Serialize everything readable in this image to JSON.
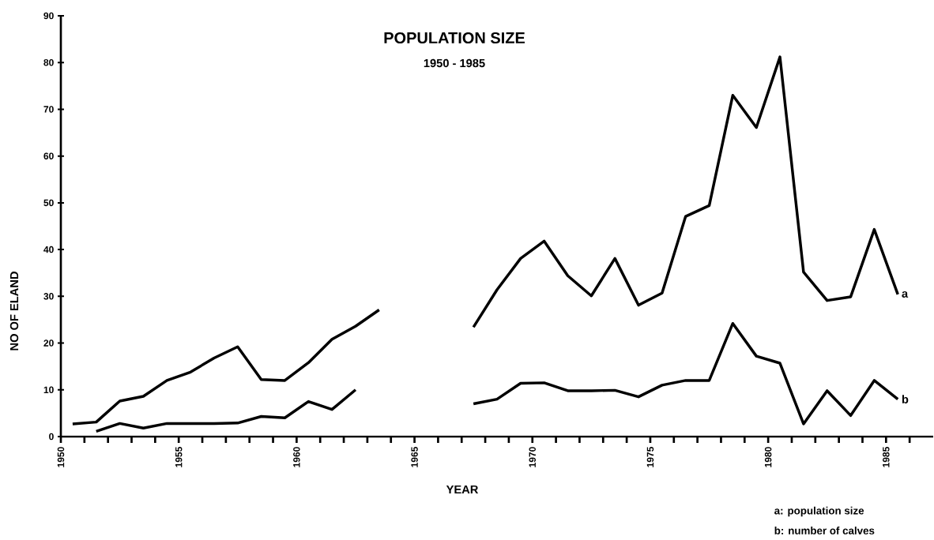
{
  "chart_data": {
    "type": "line",
    "title": "POPULATION SIZE",
    "subtitle": "1950 - 1985",
    "xlabel": "YEAR",
    "ylabel": "NO OF ELAND",
    "annotations": [
      "a: population size",
      "b: number of calves"
    ],
    "x": [
      1950.5,
      1951.5,
      1952.5,
      1953.5,
      1954.5,
      1955.5,
      1956.5,
      1957.5,
      1958.5,
      1959.5,
      1960.5,
      1961.5,
      1962.5,
      1963.5,
      1964.5,
      1965.5,
      1966.5,
      1967.5,
      1968.5,
      1969.5,
      1970.5,
      1971.5,
      1972.5,
      1973.5,
      1974.5,
      1975.5,
      1976.5,
      1977.5,
      1978.5,
      1979.5,
      1980.5,
      1981.5,
      1982.5,
      1983.5,
      1984.5,
      1985.5
    ],
    "series": [
      {
        "name": "a",
        "color": "#000000",
        "values": [
          2.7,
          3.1,
          7.6,
          8.6,
          12.0,
          13.8,
          16.8,
          19.2,
          12.2,
          12.0,
          15.8,
          20.8,
          23.6,
          27.1,
          null,
          null,
          null,
          23.4,
          31.4,
          38.1,
          41.8,
          34.4,
          30.1,
          38.1,
          28.1,
          30.7,
          47.1,
          49.4,
          73.0,
          66.1,
          81.2,
          35.2,
          29.1,
          29.9,
          44.3,
          30.4
        ]
      },
      {
        "name": "b",
        "color": "#000000",
        "values": [
          null,
          1.1,
          2.8,
          1.8,
          2.8,
          2.8,
          2.8,
          2.9,
          4.3,
          4.0,
          7.5,
          5.8,
          10.0,
          null,
          null,
          null,
          null,
          7.0,
          8.0,
          11.4,
          11.5,
          9.8,
          9.8,
          9.9,
          8.5,
          11.0,
          12.0,
          12.0,
          24.2,
          17.2,
          15.7,
          2.7,
          9.8,
          4.5,
          12.0,
          8.0
        ]
      }
    ],
    "xlim": [
      1950,
      1987
    ],
    "ylim": [
      0,
      90
    ],
    "xticks": [
      1950,
      {
        "value": 1951,
        "label": null
      },
      {
        "value": 1952,
        "label": null
      },
      {
        "value": 1953,
        "label": null
      },
      {
        "value": 1954,
        "label": null
      },
      1955,
      {
        "value": 1956,
        "label": null
      },
      {
        "value": 1957,
        "label": null
      },
      {
        "value": 1958,
        "label": null
      },
      {
        "value": 1959,
        "label": null
      },
      1960,
      {
        "value": 1961,
        "label": null
      },
      {
        "value": 1962,
        "label": null
      },
      {
        "value": 1963,
        "label": null
      },
      {
        "value": 1964,
        "label": null
      },
      1965,
      {
        "value": 1966,
        "label": null
      },
      {
        "value": 1967,
        "label": null
      },
      {
        "value": 1968,
        "label": null
      },
      {
        "value": 1969,
        "label": null
      },
      1970,
      {
        "value": 1971,
        "label": null
      },
      {
        "value": 1972,
        "label": null
      },
      {
        "value": 1973,
        "label": null
      },
      {
        "value": 1974,
        "label": null
      },
      1975,
      {
        "value": 1976,
        "label": null
      },
      {
        "value": 1977,
        "label": null
      },
      {
        "value": 1978,
        "label": null
      },
      {
        "value": 1979,
        "label": null
      },
      1980,
      {
        "value": 1981,
        "label": null
      },
      {
        "value": 1982,
        "label": null
      },
      {
        "value": 1983,
        "label": null
      },
      {
        "value": 1984,
        "label": null
      },
      1985,
      {
        "value": 1986,
        "label": null
      }
    ],
    "yticks": [
      0,
      10,
      20,
      30,
      40,
      50,
      60,
      70,
      80,
      90
    ],
    "grid": false,
    "legend": false,
    "marker": "none",
    "line_style": "solid"
  }
}
